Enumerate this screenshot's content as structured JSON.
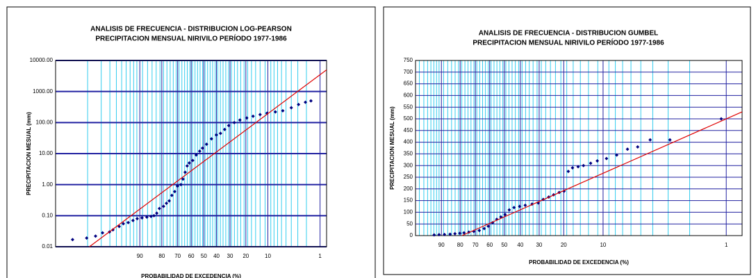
{
  "chart_data": [
    {
      "type": "scatter",
      "title": [
        "ANALISIS DE FRECUENCIA - DISTRIBUCION LOG-PEARSON",
        "PRECIPITACION MENSUAL NIRIVILO PERÍODO 1977-1986"
      ],
      "x_label": "PROBABILIDAD DE EXCEDENCIA (%)",
      "y_label": "PRECIPITACION MESUAL (mm)",
      "x_scale": "normal-probability",
      "y_scale": "log",
      "xlim": [
        99.85,
        0.7
      ],
      "ylim": [
        0.01,
        10000
      ],
      "xticks": [
        90,
        80,
        70,
        60,
        50,
        40,
        30,
        20,
        10,
        1
      ],
      "x_minor_grid": [
        99,
        98,
        97,
        96,
        95,
        94,
        93,
        92,
        91,
        89,
        87,
        85,
        83,
        81,
        79,
        77,
        75,
        73,
        71,
        69,
        67,
        65,
        63,
        61,
        59,
        57,
        55,
        53,
        51,
        49,
        47,
        45,
        43,
        41,
        39,
        37,
        35,
        33,
        31,
        29,
        27,
        25,
        23,
        21,
        19,
        17,
        15,
        13,
        11,
        9,
        8,
        7,
        6,
        5,
        4,
        3,
        2
      ],
      "yticks": [
        {
          "value": 0.01,
          "label": "0.01"
        },
        {
          "value": 0.1,
          "label": "0.10"
        },
        {
          "value": 1,
          "label": "1.00"
        },
        {
          "value": 10,
          "label": "10.00"
        },
        {
          "value": 100,
          "label": "100.00"
        },
        {
          "value": 1000,
          "label": "1000.00"
        },
        {
          "value": 10000,
          "label": "10000.00"
        }
      ],
      "grid": true,
      "series": [
        {
          "mode": "markers",
          "color": "#000080",
          "x": [
            99.57,
            99.05,
            98.49,
            97.87,
            97.05,
            96.56,
            95.49,
            94.64,
            93.5,
            92.2,
            90.9,
            89.2,
            87.3,
            85.5,
            84.1,
            82.7,
            81.3,
            79.0,
            77.3,
            75.6,
            73.9,
            72.0,
            70.1,
            67.7,
            66.2,
            64.6,
            63.1,
            61.5,
            58.8,
            56.1,
            53.3,
            51.1,
            47.8,
            43.9,
            40.1,
            36.9,
            33.8,
            30.9,
            27.1,
            23.5,
            19.5,
            16.2,
            13.0,
            10.3,
            7.6,
            5.7,
            4.0,
            2.9,
            2.1,
            1.6
          ],
          "values": [
            0.017,
            0.019,
            0.022,
            0.028,
            0.03,
            0.035,
            0.045,
            0.055,
            0.06,
            0.07,
            0.08,
            0.085,
            0.09,
            0.095,
            0.1,
            0.12,
            0.17,
            0.2,
            0.25,
            0.3,
            0.45,
            0.6,
            0.9,
            1,
            1.5,
            2.5,
            4,
            5,
            6,
            9,
            12,
            15,
            20,
            30,
            40,
            45,
            60,
            80,
            100,
            120,
            140,
            160,
            180,
            200,
            220,
            240,
            300,
            380,
            450,
            500
          ]
        },
        {
          "mode": "line",
          "color": "#e00000",
          "x": [
            98.9,
            0.7
          ],
          "values": [
            0.01,
            5000
          ]
        }
      ]
    },
    {
      "type": "scatter",
      "title": [
        "ANALISIS DE FRECUENCIA - DISTRIBUCION GUMBEL",
        "PRECIPITACION MENSUAL NIRIVILO PERÍODO 1977-1986"
      ],
      "x_label": "PROBABILIDAD DE EXCEDENCIA (%)",
      "y_label": "PRECIPITACION MESUAL (mm)",
      "x_scale": "gumbel-probability",
      "y_scale": "linear",
      "xlim": [
        97.7,
        0.74
      ],
      "ylim": [
        0,
        750
      ],
      "xticks": [
        90,
        80,
        70,
        60,
        50,
        40,
        30,
        20,
        10,
        1
      ],
      "x_minor_grid": [
        97,
        96,
        95,
        94,
        93,
        92,
        91,
        89,
        87,
        85,
        83,
        81,
        79,
        77,
        75,
        73,
        71,
        69,
        67,
        65,
        63,
        61,
        59,
        57,
        55,
        53,
        51,
        49,
        47,
        45,
        43,
        41,
        39,
        37,
        35,
        33,
        31,
        29,
        27,
        25,
        23,
        21,
        19,
        17,
        15,
        13,
        11,
        9,
        8,
        7,
        6,
        5,
        4,
        3,
        2
      ],
      "yticks": [
        0,
        50,
        100,
        150,
        200,
        250,
        300,
        350,
        400,
        450,
        500,
        550,
        600,
        650,
        700,
        750
      ],
      "grid": true,
      "series": [
        {
          "mode": "markers",
          "color": "#000080",
          "x": [
            92.9,
            91.0,
            88.6,
            85.8,
            83.1,
            80.2,
            77.6,
            74.4,
            71.1,
            67.3,
            63.9,
            61.0,
            58.0,
            55.1,
            52.3,
            49.5,
            46.8,
            43.8,
            40.4,
            37.2,
            33.5,
            30.4,
            28.1,
            25.7,
            23.7,
            21.6,
            19.9,
            18.5,
            17.2,
            15.6,
            14.2,
            12.5,
            11.1,
            9.4,
            7.8,
            6.4,
            5.3,
            4.2,
            2.9,
            1.1
          ],
          "values": [
            3,
            4,
            5,
            6,
            8,
            10,
            12,
            15,
            18,
            22,
            30,
            40,
            55,
            70,
            80,
            90,
            110,
            120,
            125,
            130,
            135,
            140,
            155,
            165,
            175,
            185,
            190,
            275,
            290,
            295,
            300,
            310,
            320,
            330,
            345,
            370,
            380,
            410,
            410,
            500
          ]
        },
        {
          "mode": "line",
          "color": "#e00000",
          "x": [
            78.9,
            0.74
          ],
          "values": [
            0,
            530
          ]
        }
      ]
    }
  ]
}
